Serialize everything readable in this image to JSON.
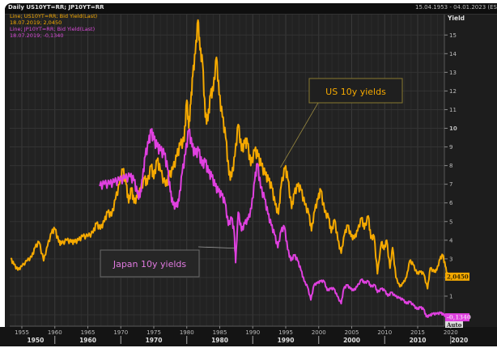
{
  "header": {
    "title": "Daily US10YT=RR; JP10YT=RR",
    "date_range": "15.04.1953 - 04.01.2023 (ES"
  },
  "legend": {
    "us_line": "Line; US10YT=RR; Bid Yield(Last)",
    "us_value": "18.07.2019; 2,0450",
    "jp_line": "Line; JP10YT=RR; Bid Yield(Last)",
    "jp_value": "18.07.2019; -0,1340"
  },
  "axis": {
    "y_title": "Yield",
    "auto_label": "Auto"
  },
  "chart_data": {
    "type": "line",
    "title": "Daily US10YT=RR; JP10YT=RR",
    "xlabel": "",
    "ylabel": "Yield",
    "xlim": [
      1953.3,
      2020.0
    ],
    "ylim": [
      0,
      15.5
    ],
    "grid": true,
    "legend_position": "top-left",
    "y_ticks": [
      1,
      2,
      3,
      4,
      5,
      6,
      7,
      8,
      9,
      10,
      11,
      12,
      13,
      14,
      15
    ],
    "x_minor_ticks": [
      "1955",
      "1960",
      "1965",
      "1970",
      "1975",
      "1980",
      "1985",
      "1990",
      "1995",
      "2000",
      "2005",
      "2010",
      "2015",
      "2020"
    ],
    "x_major_ticks": [
      "1950",
      "1960",
      "1970",
      "1980",
      "1990",
      "2000",
      "2010",
      "2020"
    ],
    "last_value_tags": [
      {
        "series": "US 10y",
        "label": "2,0450",
        "value": 2.045,
        "color": "#f5a900"
      },
      {
        "series": "Japan 10y",
        "label": "-0,1340",
        "value": -0.134,
        "color": "#e040e0"
      }
    ],
    "annotations": [
      {
        "text": "US 10y yields",
        "series": "US 10y",
        "points_to_year": 1994.2,
        "points_to_value": 7.9
      },
      {
        "text": "Japan 10y yields",
        "series": "Japan 10y",
        "points_to_year": 1987.4,
        "points_to_value": 3.7
      }
    ],
    "series": [
      {
        "name": "US 10y",
        "color": "#f5a900",
        "points": [
          [
            1953.3,
            3.0
          ],
          [
            1953.8,
            2.7
          ],
          [
            1954.4,
            2.4
          ],
          [
            1955.0,
            2.6
          ],
          [
            1955.8,
            2.9
          ],
          [
            1956.5,
            3.1
          ],
          [
            1957.0,
            3.6
          ],
          [
            1957.6,
            3.9
          ],
          [
            1958.3,
            2.9
          ],
          [
            1958.9,
            3.7
          ],
          [
            1959.5,
            4.4
          ],
          [
            1960.0,
            4.6
          ],
          [
            1960.6,
            3.9
          ],
          [
            1961.0,
            3.8
          ],
          [
            1961.8,
            4.0
          ],
          [
            1962.5,
            3.9
          ],
          [
            1963.0,
            3.9
          ],
          [
            1963.6,
            4.0
          ],
          [
            1964.2,
            4.2
          ],
          [
            1965.0,
            4.2
          ],
          [
            1965.8,
            4.4
          ],
          [
            1966.3,
            4.9
          ],
          [
            1966.9,
            4.6
          ],
          [
            1967.5,
            5.0
          ],
          [
            1968.0,
            5.5
          ],
          [
            1968.6,
            5.3
          ],
          [
            1969.2,
            6.2
          ],
          [
            1969.8,
            7.0
          ],
          [
            1970.3,
            7.8
          ],
          [
            1970.8,
            7.0
          ],
          [
            1971.2,
            6.0
          ],
          [
            1971.6,
            6.8
          ],
          [
            1972.0,
            6.0
          ],
          [
            1972.5,
            6.3
          ],
          [
            1973.0,
            6.7
          ],
          [
            1973.6,
            7.3
          ],
          [
            1974.0,
            7.0
          ],
          [
            1974.6,
            8.0
          ],
          [
            1975.0,
            7.3
          ],
          [
            1975.5,
            8.3
          ],
          [
            1976.0,
            7.7
          ],
          [
            1976.8,
            6.9
          ],
          [
            1977.3,
            7.4
          ],
          [
            1977.9,
            7.8
          ],
          [
            1978.5,
            8.5
          ],
          [
            1979.0,
            9.1
          ],
          [
            1979.6,
            9.3
          ],
          [
            1980.0,
            11.5
          ],
          [
            1980.3,
            10.0
          ],
          [
            1980.6,
            11.3
          ],
          [
            1980.9,
            12.8
          ],
          [
            1981.3,
            14.0
          ],
          [
            1981.7,
            15.8
          ],
          [
            1982.0,
            14.2
          ],
          [
            1982.4,
            13.5
          ],
          [
            1982.8,
            10.6
          ],
          [
            1983.2,
            10.4
          ],
          [
            1983.6,
            11.8
          ],
          [
            1984.0,
            12.0
          ],
          [
            1984.5,
            13.8
          ],
          [
            1984.9,
            11.8
          ],
          [
            1985.4,
            10.6
          ],
          [
            1985.9,
            9.5
          ],
          [
            1986.4,
            7.5
          ],
          [
            1986.8,
            7.4
          ],
          [
            1987.3,
            8.5
          ],
          [
            1987.8,
            10.2
          ],
          [
            1988.3,
            8.8
          ],
          [
            1988.8,
            9.2
          ],
          [
            1989.2,
            9.2
          ],
          [
            1989.7,
            8.0
          ],
          [
            1990.3,
            8.8
          ],
          [
            1990.8,
            8.5
          ],
          [
            1991.3,
            8.0
          ],
          [
            1991.9,
            7.5
          ],
          [
            1992.4,
            7.2
          ],
          [
            1992.9,
            6.8
          ],
          [
            1993.4,
            5.9
          ],
          [
            1993.9,
            5.4
          ],
          [
            1994.3,
            6.9
          ],
          [
            1994.9,
            7.9
          ],
          [
            1995.3,
            7.3
          ],
          [
            1995.9,
            5.7
          ],
          [
            1996.3,
            6.5
          ],
          [
            1996.8,
            6.9
          ],
          [
            1997.3,
            6.7
          ],
          [
            1997.9,
            5.9
          ],
          [
            1998.5,
            5.4
          ],
          [
            1998.9,
            4.5
          ],
          [
            1999.4,
            5.6
          ],
          [
            1999.9,
            6.2
          ],
          [
            2000.3,
            6.7
          ],
          [
            2000.9,
            5.5
          ],
          [
            2001.5,
            5.2
          ],
          [
            2001.9,
            4.4
          ],
          [
            2002.4,
            5.1
          ],
          [
            2002.9,
            4.0
          ],
          [
            2003.4,
            3.3
          ],
          [
            2003.9,
            4.3
          ],
          [
            2004.4,
            4.8
          ],
          [
            2004.9,
            4.2
          ],
          [
            2005.4,
            4.1
          ],
          [
            2005.9,
            4.5
          ],
          [
            2006.5,
            5.2
          ],
          [
            2006.9,
            4.6
          ],
          [
            2007.5,
            5.3
          ],
          [
            2007.9,
            4.1
          ],
          [
            2008.4,
            4.2
          ],
          [
            2008.9,
            2.2
          ],
          [
            2009.5,
            3.9
          ],
          [
            2009.9,
            3.5
          ],
          [
            2010.3,
            4.0
          ],
          [
            2010.8,
            2.5
          ],
          [
            2011.2,
            3.6
          ],
          [
            2011.7,
            2.0
          ],
          [
            2012.3,
            1.5
          ],
          [
            2012.8,
            1.7
          ],
          [
            2013.3,
            2.0
          ],
          [
            2013.8,
            2.9
          ],
          [
            2014.3,
            2.7
          ],
          [
            2014.9,
            2.2
          ],
          [
            2015.4,
            2.3
          ],
          [
            2015.9,
            2.2
          ],
          [
            2016.5,
            1.4
          ],
          [
            2016.9,
            2.5
          ],
          [
            2017.5,
            2.3
          ],
          [
            2017.9,
            2.4
          ],
          [
            2018.4,
            3.0
          ],
          [
            2018.8,
            3.2
          ],
          [
            2019.2,
            2.6
          ],
          [
            2019.55,
            2.045
          ]
        ]
      },
      {
        "name": "Japan 10y",
        "color": "#e040e0",
        "points": [
          [
            1966.8,
            6.9
          ],
          [
            1967.5,
            7.0
          ],
          [
            1968.3,
            7.0
          ],
          [
            1969.0,
            7.1
          ],
          [
            1969.8,
            7.2
          ],
          [
            1970.6,
            7.3
          ],
          [
            1971.4,
            7.4
          ],
          [
            1972.0,
            7.2
          ],
          [
            1972.5,
            6.5
          ],
          [
            1972.9,
            6.3
          ],
          [
            1973.3,
            7.3
          ],
          [
            1973.7,
            8.5
          ],
          [
            1974.2,
            9.2
          ],
          [
            1974.6,
            9.8
          ],
          [
            1975.0,
            9.4
          ],
          [
            1975.5,
            9.0
          ],
          [
            1976.0,
            8.8
          ],
          [
            1976.6,
            8.6
          ],
          [
            1977.1,
            7.8
          ],
          [
            1977.5,
            6.6
          ],
          [
            1977.9,
            5.9
          ],
          [
            1978.4,
            5.8
          ],
          [
            1978.8,
            6.1
          ],
          [
            1979.3,
            7.6
          ],
          [
            1979.8,
            8.6
          ],
          [
            1980.3,
            9.9
          ],
          [
            1980.8,
            9.0
          ],
          [
            1981.3,
            8.6
          ],
          [
            1981.8,
            8.8
          ],
          [
            1982.3,
            8.0
          ],
          [
            1982.8,
            8.2
          ],
          [
            1983.3,
            7.6
          ],
          [
            1983.8,
            7.4
          ],
          [
            1984.3,
            6.9
          ],
          [
            1984.8,
            6.6
          ],
          [
            1985.3,
            6.4
          ],
          [
            1985.8,
            6.0
          ],
          [
            1986.3,
            4.8
          ],
          [
            1986.8,
            5.2
          ],
          [
            1987.2,
            4.4
          ],
          [
            1987.4,
            2.8
          ],
          [
            1987.8,
            5.5
          ],
          [
            1988.3,
            4.5
          ],
          [
            1988.8,
            4.9
          ],
          [
            1989.3,
            5.1
          ],
          [
            1989.8,
            5.7
          ],
          [
            1990.3,
            7.2
          ],
          [
            1990.7,
            8.1
          ],
          [
            1991.2,
            6.8
          ],
          [
            1991.8,
            6.2
          ],
          [
            1992.3,
            5.4
          ],
          [
            1992.8,
            4.8
          ],
          [
            1993.3,
            4.3
          ],
          [
            1993.8,
            3.6
          ],
          [
            1994.3,
            4.5
          ],
          [
            1994.8,
            4.7
          ],
          [
            1995.3,
            3.5
          ],
          [
            1995.8,
            2.9
          ],
          [
            1996.3,
            3.2
          ],
          [
            1996.8,
            2.9
          ],
          [
            1997.3,
            2.4
          ],
          [
            1997.8,
            1.8
          ],
          [
            1998.3,
            1.5
          ],
          [
            1998.8,
            0.8
          ],
          [
            1999.3,
            1.6
          ],
          [
            1999.8,
            1.7
          ],
          [
            2000.3,
            1.8
          ],
          [
            2000.8,
            1.8
          ],
          [
            2001.3,
            1.3
          ],
          [
            2001.8,
            1.4
          ],
          [
            2002.3,
            1.4
          ],
          [
            2002.8,
            1.0
          ],
          [
            2003.4,
            0.6
          ],
          [
            2003.8,
            1.4
          ],
          [
            2004.3,
            1.6
          ],
          [
            2004.8,
            1.4
          ],
          [
            2005.3,
            1.3
          ],
          [
            2005.8,
            1.5
          ],
          [
            2006.5,
            1.9
          ],
          [
            2006.9,
            1.7
          ],
          [
            2007.5,
            1.8
          ],
          [
            2007.9,
            1.5
          ],
          [
            2008.5,
            1.6
          ],
          [
            2008.9,
            1.2
          ],
          [
            2009.5,
            1.4
          ],
          [
            2010.0,
            1.3
          ],
          [
            2010.5,
            1.0
          ],
          [
            2011.0,
            1.2
          ],
          [
            2011.6,
            1.0
          ],
          [
            2012.2,
            0.9
          ],
          [
            2012.8,
            0.8
          ],
          [
            2013.3,
            0.6
          ],
          [
            2013.8,
            0.7
          ],
          [
            2014.4,
            0.5
          ],
          [
            2014.9,
            0.3
          ],
          [
            2015.4,
            0.4
          ],
          [
            2015.9,
            0.3
          ],
          [
            2016.3,
            -0.1
          ],
          [
            2016.8,
            -0.05
          ],
          [
            2017.3,
            0.05
          ],
          [
            2017.9,
            0.05
          ],
          [
            2018.5,
            0.1
          ],
          [
            2018.9,
            0.0
          ],
          [
            2019.3,
            -0.05
          ],
          [
            2019.55,
            -0.134
          ]
        ]
      }
    ]
  }
}
